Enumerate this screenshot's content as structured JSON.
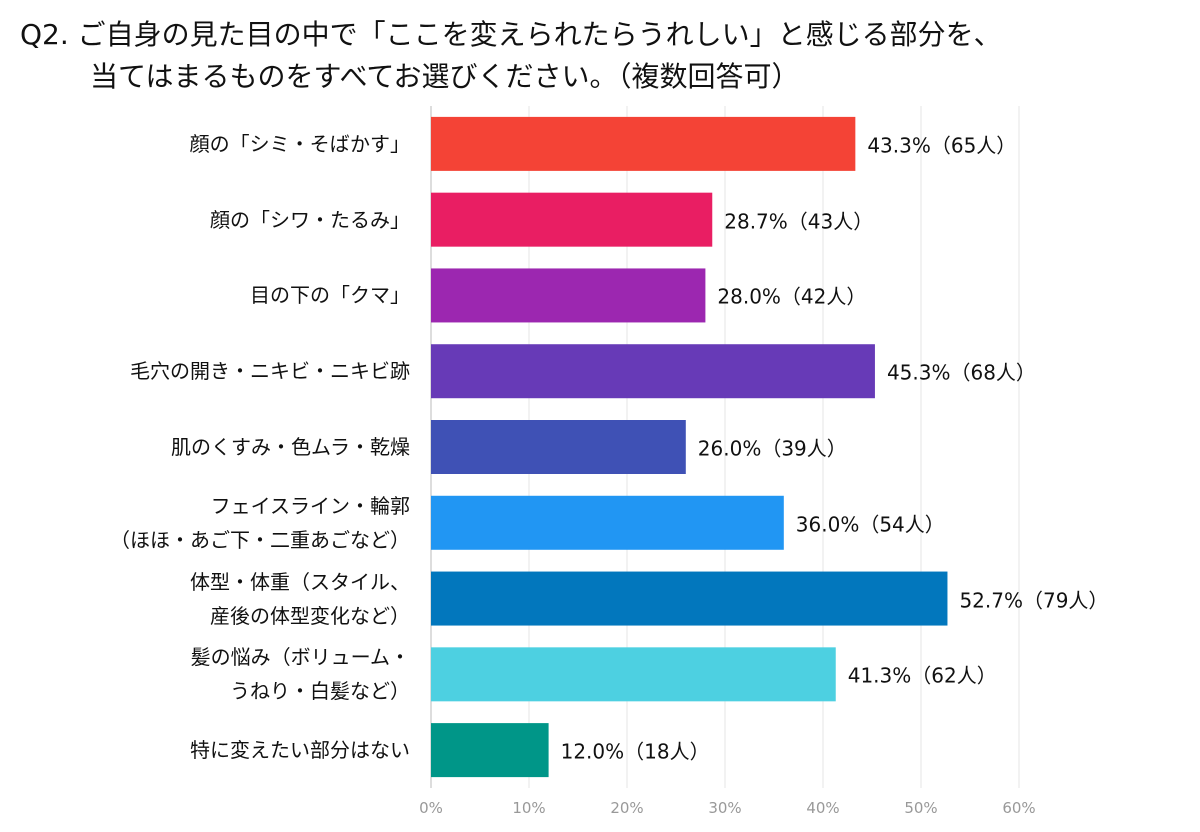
{
  "chart_data": {
    "type": "bar",
    "orientation": "horizontal",
    "title": "Q2. ご自身の見た目の中で「ここを変えられたらうれしい」と感じる部分を、\n当てはまるものをすべてお選びください。（複数回答可）",
    "categories": [
      "顔の「シミ・そばかす」",
      "顔の「シワ・たるみ」",
      "目の下の「クマ」",
      "毛穴の開き・ニキビ・ニキビ跡",
      "肌のくすみ・色ムラ・乾燥",
      "フェイスライン・輪郭\n（ほほ・あご下・二重あごなど）",
      "体型・体重（スタイル、\n産後の体型変化など）",
      "髪の悩み（ボリューム・\nうねり・白髪など）",
      "特に変えたい部分はない"
    ],
    "values": [
      43.3,
      28.7,
      28.0,
      45.3,
      26.0,
      36.0,
      52.7,
      41.3,
      12.0
    ],
    "value_labels": [
      "43.3%（65人）",
      "28.7%（43人）",
      "28.0%（42人）",
      "45.3%（68人）",
      "26.0%（39人）",
      "36.0%（54人）",
      "52.7%（79人）",
      "41.3%（62人）",
      "12.0%（18人）"
    ],
    "colors": [
      "#f44336",
      "#e91e63",
      "#9c27b0",
      "#673ab7",
      "#3f51b5",
      "#2196f3",
      "#0277bd",
      "#4dd0e1",
      "#009688"
    ],
    "xlim": [
      0,
      60
    ],
    "xticks": [
      {
        "value": 0,
        "label": "0%"
      },
      {
        "value": 10,
        "label": "10%"
      },
      {
        "value": 20,
        "label": "20%"
      },
      {
        "value": 30,
        "label": "30%"
      },
      {
        "value": 40,
        "label": "40%"
      },
      {
        "value": 50,
        "label": "50%"
      },
      {
        "value": 60,
        "label": "60%"
      }
    ],
    "grid": true
  }
}
